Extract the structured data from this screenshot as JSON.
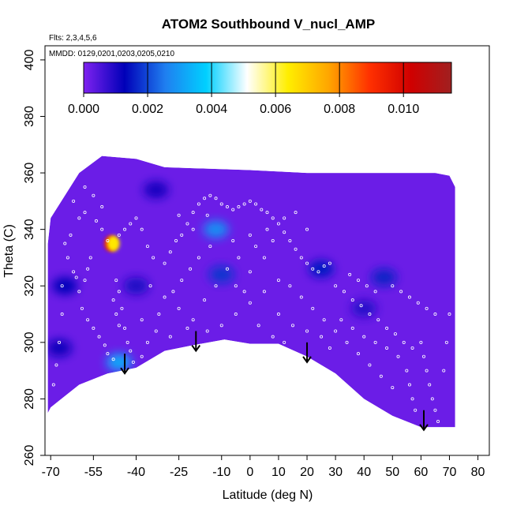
{
  "chart_data": {
    "type": "heatmap",
    "title": "ATOM2 Southbound V_nucl_AMP",
    "xlabel": "Latitude (deg N)",
    "ylabel": "Theta (C)",
    "notes": {
      "flights": "Flts: 2,3,4,5,6",
      "dates": "MMDD: 0129,0201,0203,0205,0210"
    },
    "xlim": [
      -72,
      84
    ],
    "ylim": [
      260,
      405
    ],
    "x_ticks": [
      -70,
      -55,
      -40,
      -25,
      -10,
      0,
      10,
      20,
      30,
      40,
      50,
      60,
      70,
      80
    ],
    "x_tick_labels": [
      "-70",
      "-55",
      "-40",
      "-25",
      "-10",
      "0",
      "10",
      "20",
      "30",
      "40",
      "50",
      "60",
      "70",
      "80"
    ],
    "y_ticks": [
      260,
      280,
      300,
      320,
      340,
      360,
      380,
      400
    ],
    "y_tick_labels": [
      "260",
      "280",
      "300",
      "320",
      "340",
      "360",
      "380",
      "400"
    ],
    "colorbar": {
      "range": [
        0,
        0.0115
      ],
      "ticks": [
        0,
        0.002,
        0.004,
        0.006,
        0.008,
        0.01
      ],
      "tick_labels": [
        "0.000",
        "0.002",
        "0.004",
        "0.006",
        "0.008",
        "0.010"
      ],
      "colors": [
        "#7f22f0",
        "#0000b8",
        "#1f7ff0",
        "#00d0ff",
        "#ffffff",
        "#ffee00",
        "#ffa500",
        "#ff3000",
        "#d00000",
        "#a02020"
      ]
    },
    "background_value": 0.0002,
    "domain_boundary": [
      [
        -71,
        275
      ],
      [
        -70,
        277
      ],
      [
        -60,
        285
      ],
      [
        -50,
        289
      ],
      [
        -40,
        291
      ],
      [
        -30,
        297
      ],
      [
        -20,
        299
      ],
      [
        -9,
        301
      ],
      [
        0,
        299.5
      ],
      [
        10,
        299.5
      ],
      [
        20,
        295
      ],
      [
        30,
        289
      ],
      [
        40,
        280
      ],
      [
        50,
        274
      ],
      [
        60,
        270
      ],
      [
        72,
        270
      ],
      [
        72,
        355
      ],
      [
        70,
        359
      ],
      [
        65,
        360
      ],
      [
        20,
        360
      ],
      [
        0,
        361
      ],
      [
        -30,
        362
      ],
      [
        -40,
        365
      ],
      [
        -52,
        366
      ],
      [
        -60,
        360
      ],
      [
        -70,
        344
      ],
      [
        -71,
        335
      ]
    ],
    "hotspots": [
      {
        "x": -49,
        "y": 335,
        "value": 0.0095
      },
      {
        "x": -48,
        "y": 335,
        "value": 0.0065
      },
      {
        "x": -46,
        "y": 293,
        "value": 0.0032
      },
      {
        "x": -12,
        "y": 340,
        "value": 0.0028
      },
      {
        "x": -10,
        "y": 324,
        "value": 0.0018
      },
      {
        "x": 25,
        "y": 326,
        "value": 0.0015
      },
      {
        "x": 47,
        "y": 323,
        "value": 0.0016
      },
      {
        "x": -65,
        "y": 320,
        "value": 0.0013
      },
      {
        "x": -67,
        "y": 298,
        "value": 0.0012
      },
      {
        "x": -40,
        "y": 320,
        "value": 0.001
      },
      {
        "x": -33,
        "y": 354,
        "value": 0.0011
      },
      {
        "x": 40,
        "y": 312,
        "value": 0.0009
      }
    ],
    "arrows": [
      {
        "x": -44,
        "y_top": 296,
        "y_bottom": 289
      },
      {
        "x": -19,
        "y_top": 304,
        "y_bottom": 297
      },
      {
        "x": 20,
        "y_top": 300,
        "y_bottom": 293
      },
      {
        "x": 61,
        "y_top": 276,
        "y_bottom": 269
      }
    ],
    "sample_points": [
      [
        -62,
        325
      ],
      [
        -61,
        323
      ],
      [
        -60,
        318
      ],
      [
        -59,
        312
      ],
      [
        -57,
        308
      ],
      [
        -55,
        305
      ],
      [
        -53,
        302
      ],
      [
        -51,
        299
      ],
      [
        -50,
        296
      ],
      [
        -48,
        294
      ],
      [
        -47,
        322
      ],
      [
        -46,
        318
      ],
      [
        -45,
        312
      ],
      [
        -44,
        305
      ],
      [
        -43,
        300
      ],
      [
        -42,
        297
      ],
      [
        -41,
        293
      ],
      [
        -40,
        290
      ],
      [
        -66,
        320
      ],
      [
        -66,
        310
      ],
      [
        -67,
        300
      ],
      [
        -68,
        292
      ],
      [
        -69,
        285
      ],
      [
        -64,
        330
      ],
      [
        -63,
        338
      ],
      [
        -60,
        344
      ],
      [
        -58,
        346
      ],
      [
        -54,
        343
      ],
      [
        -52,
        340
      ],
      [
        -50,
        336
      ],
      [
        -46,
        338
      ],
      [
        -44,
        340
      ],
      [
        -42,
        342
      ],
      [
        -40,
        344
      ],
      [
        -38,
        340
      ],
      [
        -36,
        334
      ],
      [
        -34,
        330
      ],
      [
        -30,
        328
      ],
      [
        -28,
        332
      ],
      [
        -26,
        336
      ],
      [
        -24,
        338
      ],
      [
        -22,
        342
      ],
      [
        -20,
        346
      ],
      [
        -18,
        349
      ],
      [
        -16,
        351
      ],
      [
        -14,
        352
      ],
      [
        -12,
        351
      ],
      [
        -10,
        349
      ],
      [
        -8,
        348
      ],
      [
        -6,
        347
      ],
      [
        -4,
        348
      ],
      [
        -2,
        349
      ],
      [
        0,
        350
      ],
      [
        2,
        349
      ],
      [
        4,
        347
      ],
      [
        6,
        346
      ],
      [
        8,
        344
      ],
      [
        10,
        342
      ],
      [
        12,
        339
      ],
      [
        14,
        336
      ],
      [
        16,
        333
      ],
      [
        18,
        330
      ],
      [
        20,
        328
      ],
      [
        22,
        326
      ],
      [
        24,
        325
      ],
      [
        26,
        327
      ],
      [
        28,
        328
      ],
      [
        -35,
        320
      ],
      [
        -30,
        316
      ],
      [
        -25,
        312
      ],
      [
        -20,
        308
      ],
      [
        -15,
        304
      ],
      [
        -10,
        306
      ],
      [
        -5,
        310
      ],
      [
        0,
        314
      ],
      [
        5,
        318
      ],
      [
        10,
        322
      ],
      [
        -38,
        308
      ],
      [
        -33,
        304
      ],
      [
        -28,
        302
      ],
      [
        -22,
        305
      ],
      [
        -16,
        315
      ],
      [
        -12,
        320
      ],
      [
        -8,
        326
      ],
      [
        -4,
        330
      ],
      [
        2,
        334
      ],
      [
        8,
        336
      ],
      [
        14,
        320
      ],
      [
        18,
        316
      ],
      [
        22,
        312
      ],
      [
        26,
        308
      ],
      [
        30,
        304
      ],
      [
        34,
        300
      ],
      [
        38,
        296
      ],
      [
        42,
        292
      ],
      [
        46,
        288
      ],
      [
        50,
        284
      ],
      [
        30,
        320
      ],
      [
        33,
        318
      ],
      [
        36,
        315
      ],
      [
        39,
        313
      ],
      [
        42,
        310
      ],
      [
        45,
        308
      ],
      [
        48,
        305
      ],
      [
        51,
        303
      ],
      [
        54,
        300
      ],
      [
        57,
        298
      ],
      [
        35,
        324
      ],
      [
        38,
        322
      ],
      [
        41,
        320
      ],
      [
        44,
        318
      ],
      [
        50,
        320
      ],
      [
        53,
        318
      ],
      [
        56,
        316
      ],
      [
        59,
        314
      ],
      [
        62,
        312
      ],
      [
        65,
        310
      ],
      [
        60,
        300
      ],
      [
        61,
        295
      ],
      [
        62,
        290
      ],
      [
        63,
        285
      ],
      [
        64,
        280
      ],
      [
        65,
        276
      ],
      [
        66,
        272
      ],
      [
        68,
        290
      ],
      [
        69,
        300
      ],
      [
        70,
        310
      ],
      [
        55,
        290
      ],
      [
        56,
        285
      ],
      [
        57,
        280
      ],
      [
        58,
        276
      ],
      [
        52,
        295
      ],
      [
        48,
        298
      ],
      [
        44,
        300
      ],
      [
        40,
        302
      ],
      [
        36,
        305
      ],
      [
        32,
        308
      ],
      [
        -56,
        330
      ],
      [
        -57,
        326
      ],
      [
        -58,
        322
      ],
      [
        -48,
        315
      ],
      [
        -47,
        310
      ],
      [
        -46,
        306
      ],
      [
        -38,
        295
      ],
      [
        -36,
        300
      ],
      [
        -32,
        310
      ],
      [
        -27,
        318
      ],
      [
        -24,
        322
      ],
      [
        -21,
        326
      ],
      [
        -18,
        330
      ],
      [
        -14,
        334
      ],
      [
        -6,
        336
      ],
      [
        0,
        338
      ],
      [
        6,
        340
      ],
      [
        12,
        344
      ],
      [
        16,
        346
      ],
      [
        20,
        340
      ],
      [
        -65,
        335
      ],
      [
        -62,
        350
      ],
      [
        -58,
        355
      ],
      [
        -55,
        352
      ],
      [
        -52,
        348
      ],
      [
        -25,
        345
      ],
      [
        -20,
        340
      ],
      [
        -15,
        345
      ],
      [
        0,
        325
      ],
      [
        5,
        330
      ],
      [
        10,
        310
      ],
      [
        15,
        306
      ],
      [
        20,
        304
      ],
      [
        25,
        302
      ],
      [
        28,
        298
      ],
      [
        -5,
        320
      ],
      [
        -2,
        318
      ],
      [
        3,
        306
      ],
      [
        8,
        302
      ],
      [
        12,
        300
      ]
    ]
  }
}
